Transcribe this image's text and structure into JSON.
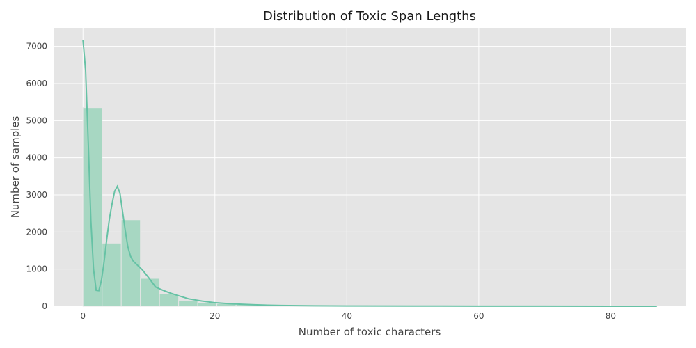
{
  "chart_data": {
    "type": "bar",
    "title": "Distribution of Toxic Span Lengths",
    "xlabel": "Number of toxic characters",
    "ylabel": "Number of samples",
    "xlim": [
      -4.35,
      91.35
    ],
    "ylim": [
      0,
      7500
    ],
    "xticks": [
      0,
      20,
      40,
      60,
      80
    ],
    "yticks": [
      0,
      1000,
      2000,
      3000,
      4000,
      5000,
      6000,
      7000
    ],
    "grid": true,
    "colors": {
      "background": "#e5e5e5",
      "bar": "#a7d7c2",
      "kde": "#66c2a5"
    },
    "histogram": {
      "bin_width": 2.9,
      "bins": [
        {
          "start": 0.0,
          "count": 5350
        },
        {
          "start": 2.9,
          "count": 1700
        },
        {
          "start": 5.8,
          "count": 2330
        },
        {
          "start": 8.7,
          "count": 750
        },
        {
          "start": 11.6,
          "count": 340
        },
        {
          "start": 14.5,
          "count": 160
        },
        {
          "start": 17.4,
          "count": 100
        },
        {
          "start": 20.3,
          "count": 70
        },
        {
          "start": 23.2,
          "count": 50
        },
        {
          "start": 26.1,
          "count": 30
        },
        {
          "start": 29.0,
          "count": 20
        },
        {
          "start": 31.9,
          "count": 12
        },
        {
          "start": 34.8,
          "count": 10
        },
        {
          "start": 37.7,
          "count": 8
        },
        {
          "start": 40.6,
          "count": 6
        },
        {
          "start": 43.5,
          "count": 5
        },
        {
          "start": 46.4,
          "count": 4
        },
        {
          "start": 49.3,
          "count": 3
        },
        {
          "start": 52.2,
          "count": 3
        },
        {
          "start": 55.1,
          "count": 2
        },
        {
          "start": 58.0,
          "count": 2
        },
        {
          "start": 60.9,
          "count": 2
        },
        {
          "start": 63.8,
          "count": 2
        },
        {
          "start": 66.7,
          "count": 1
        },
        {
          "start": 69.6,
          "count": 1
        },
        {
          "start": 72.5,
          "count": 1
        },
        {
          "start": 75.4,
          "count": 1
        },
        {
          "start": 78.3,
          "count": 1
        },
        {
          "start": 81.2,
          "count": 1
        },
        {
          "start": 84.1,
          "count": 1
        }
      ]
    },
    "kde": {
      "x": [
        0,
        0.4,
        0.8,
        1.2,
        1.6,
        2.0,
        2.4,
        2.8,
        3.2,
        3.6,
        4.0,
        4.4,
        4.8,
        5.2,
        5.6,
        6.0,
        6.4,
        6.8,
        7.2,
        7.6,
        8.0,
        9.0,
        10.0,
        11.0,
        12.0,
        13.0,
        14.0,
        16.0,
        18.0,
        20.0,
        22.0,
        24.0,
        26.0,
        28.0,
        30.0,
        35.0,
        40.0,
        50.0,
        60.0,
        70.0,
        80.0,
        87.0
      ],
      "y": [
        7170,
        6350,
        4400,
        2300,
        1000,
        430,
        420,
        700,
        1200,
        1800,
        2350,
        2750,
        3100,
        3230,
        3050,
        2550,
        2050,
        1600,
        1350,
        1220,
        1150,
        980,
        760,
        520,
        440,
        370,
        310,
        200,
        140,
        95,
        70,
        55,
        40,
        28,
        20,
        12,
        8,
        5,
        3,
        2,
        1,
        1
      ]
    }
  }
}
